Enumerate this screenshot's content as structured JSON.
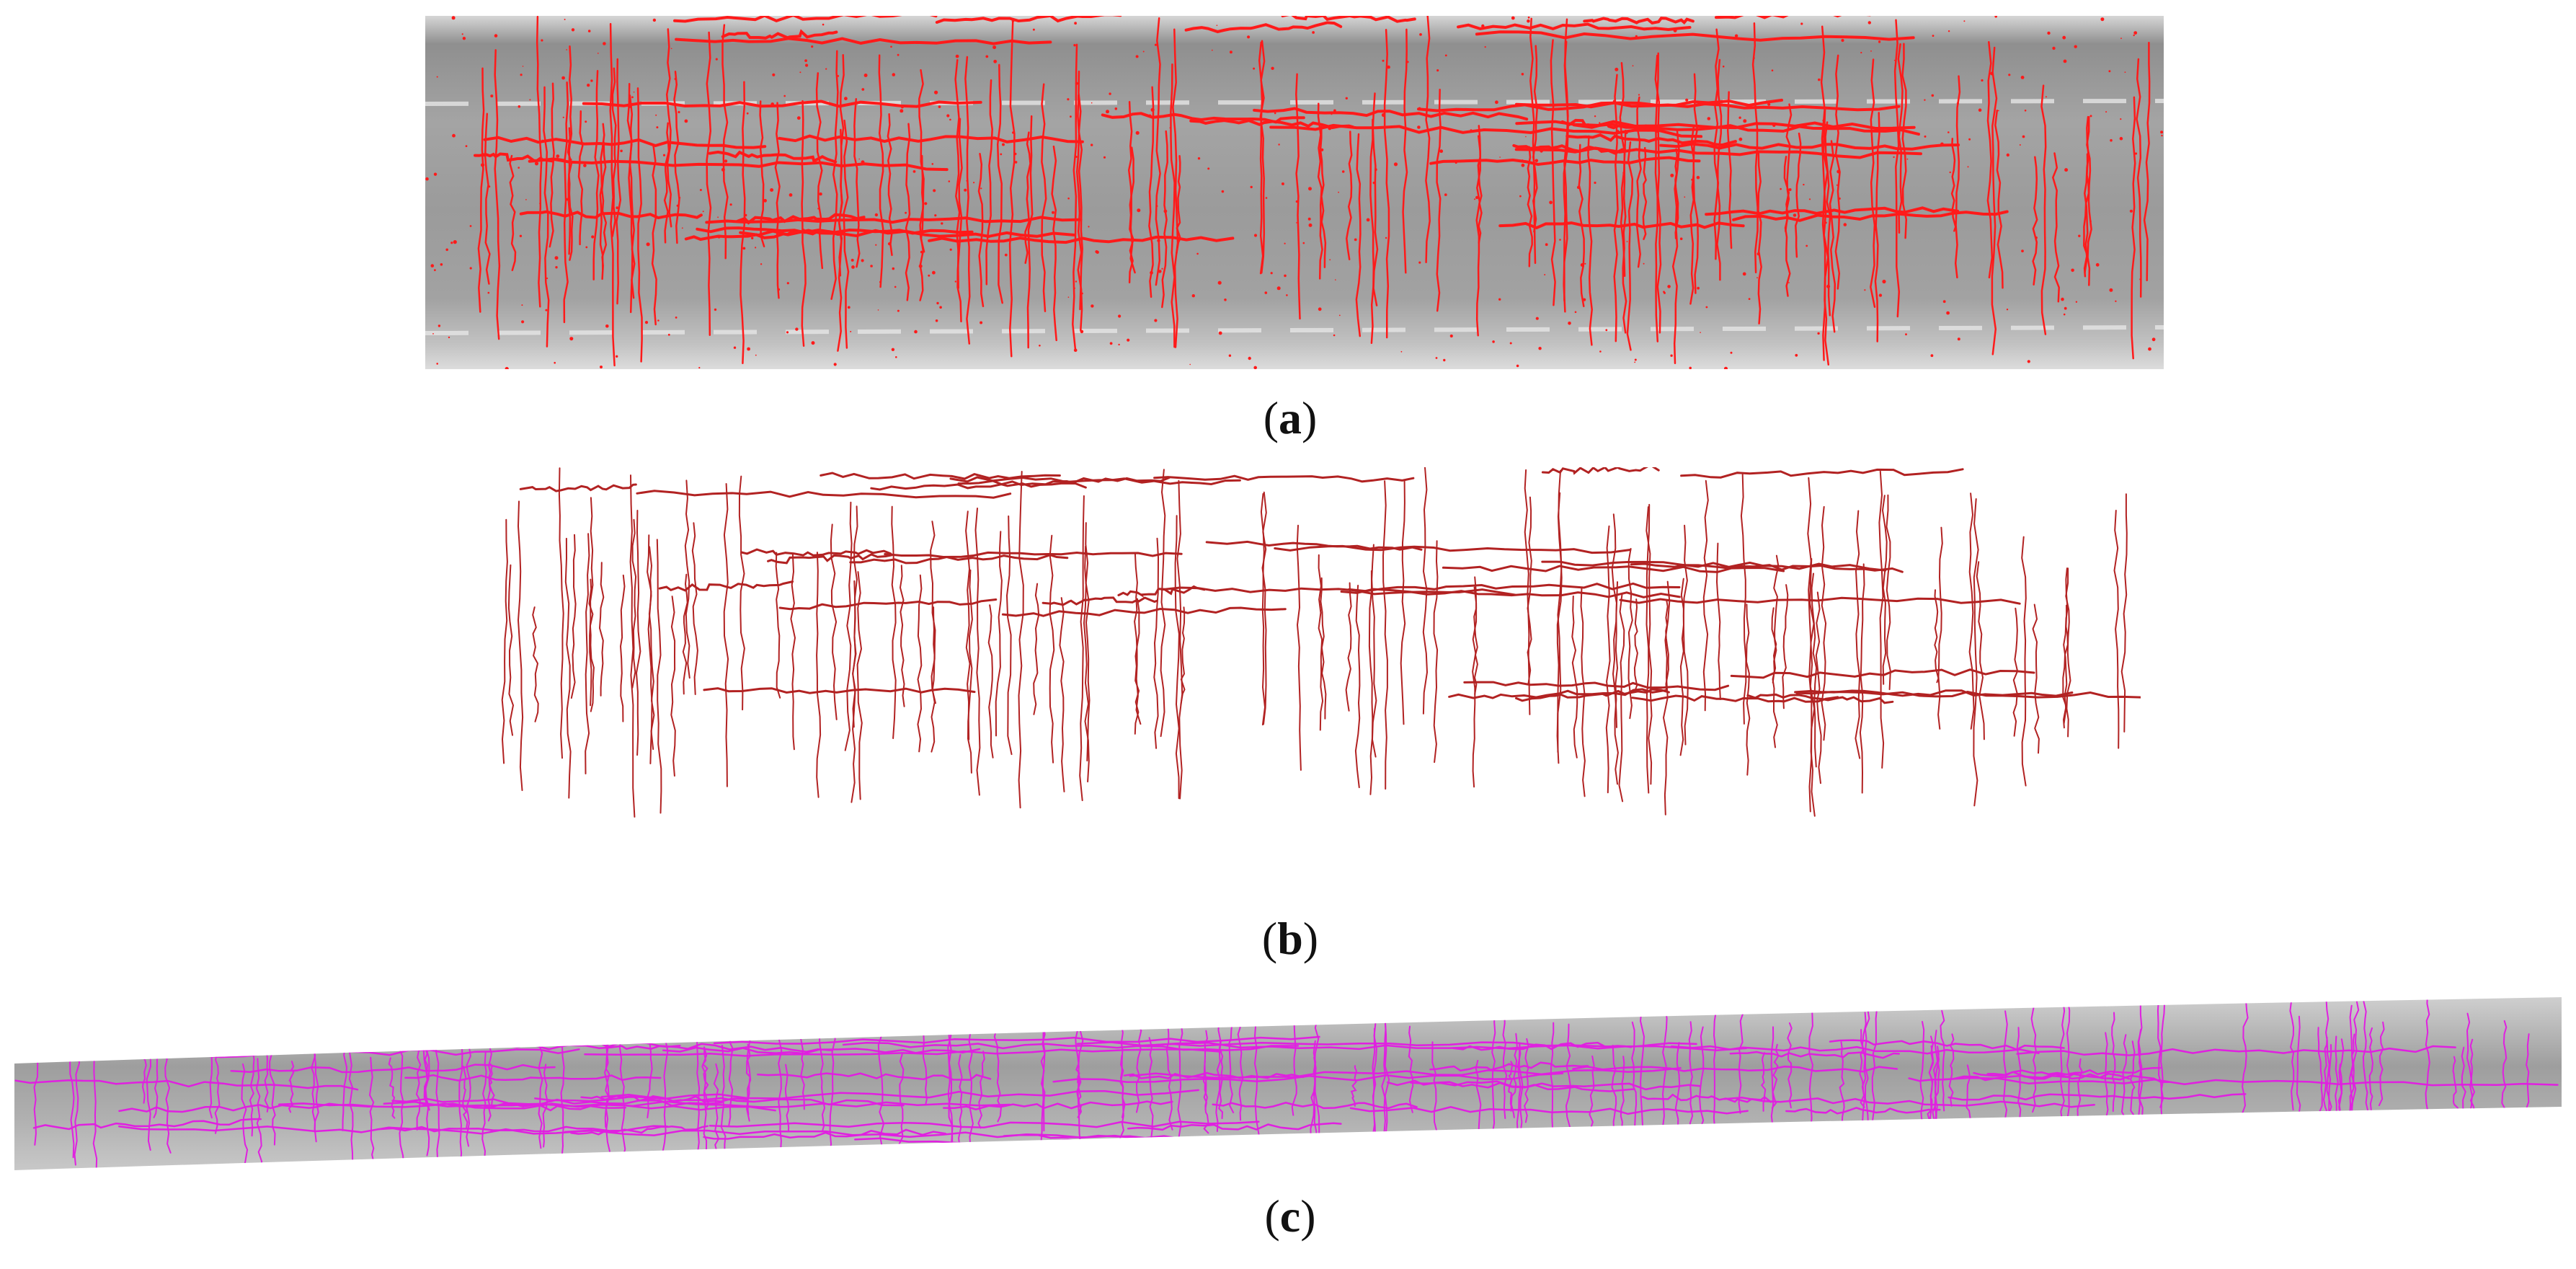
{
  "figure": {
    "panels": [
      {
        "id": "a",
        "caption_open": "(",
        "caption_letter": "a",
        "caption_close": ")",
        "background": "#9a9a9a",
        "crack_color": "#ff1a1a",
        "description_icon": "pavement-crack-overlay-image"
      },
      {
        "id": "b",
        "caption_open": "(",
        "caption_letter": "b",
        "caption_close": ")",
        "background": "#ffffff",
        "crack_color": "#b22222",
        "description_icon": "extracted-crack-map-image"
      },
      {
        "id": "c",
        "caption_open": "(",
        "caption_letter": "c",
        "caption_close": ")",
        "background": "#a8a8a8",
        "crack_color": "#e020e0",
        "description_icon": "curved-pavement-crack-image"
      }
    ]
  }
}
